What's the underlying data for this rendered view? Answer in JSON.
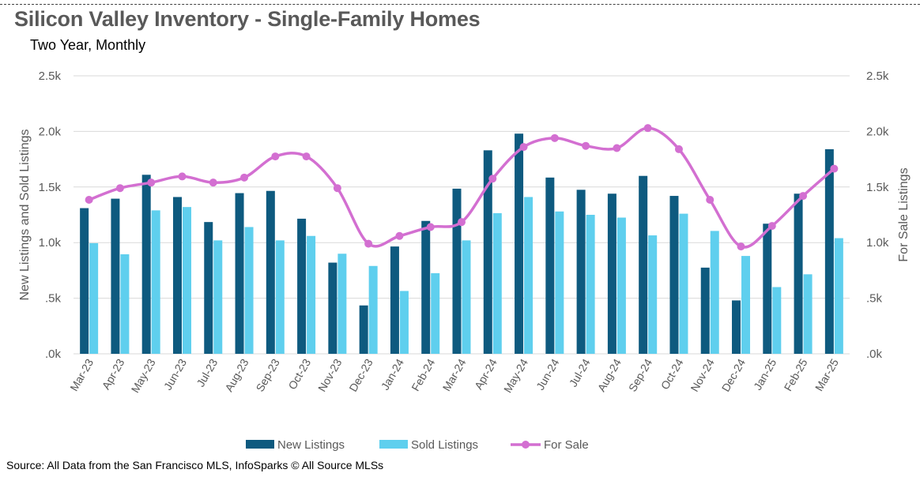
{
  "header": {
    "title": "Silicon Valley Inventory - Single-Family Homes",
    "subtitle": "Two Year, Monthly"
  },
  "footer": {
    "source": "Source: All Data from the San Francisco MLS, InfoSparks © All Source MLSs"
  },
  "colors": {
    "new_listings": "#0e5a7f",
    "sold_listings": "#5fcfee",
    "for_sale": "#d36fd1",
    "grid": "#d9d9d9",
    "text": "#595959"
  },
  "chart_data": {
    "type": "bar",
    "title": "Silicon Valley Inventory - Single-Family Homes",
    "subtitle": "Two Year, Monthly",
    "categories": [
      "Mar-23",
      "Apr-23",
      "May-23",
      "Jun-23",
      "Jul-23",
      "Aug-23",
      "Sep-23",
      "Oct-23",
      "Nov-23",
      "Dec-23",
      "Jan-24",
      "Feb-24",
      "Mar-24",
      "Apr-24",
      "May-24",
      "Jun-24",
      "Jul-24",
      "Aug-24",
      "Sep-24",
      "Oct-24",
      "Nov-24",
      "Dec-24",
      "Jan-25",
      "Feb-25",
      "Mar-25"
    ],
    "ylabel": "New Listings and Sold Listings",
    "y2label": "For Sale Listings",
    "ylim": [
      0,
      2500
    ],
    "y2lim": [
      0,
      2500
    ],
    "yticks": [
      ".0k",
      ".5k",
      "1.0k",
      "1.5k",
      "2.0k",
      "2.5k"
    ],
    "ytick_values": [
      0,
      500,
      1000,
      1500,
      2000,
      2500
    ],
    "grid": true,
    "legend_position": "bottom",
    "series": [
      {
        "name": "New Listings",
        "type": "bar",
        "axis": "left",
        "values": [
          1310,
          1395,
          1610,
          1410,
          1185,
          1445,
          1465,
          1215,
          820,
          435,
          965,
          1195,
          1485,
          1830,
          1980,
          1585,
          1475,
          1440,
          1600,
          1420,
          775,
          480,
          1170,
          1440,
          1840
        ]
      },
      {
        "name": "Sold Listings",
        "type": "bar",
        "axis": "left",
        "values": [
          995,
          895,
          1290,
          1320,
          1020,
          1140,
          1020,
          1060,
          900,
          790,
          565,
          725,
          1020,
          1265,
          1410,
          1280,
          1250,
          1225,
          1065,
          1260,
          1105,
          880,
          600,
          715,
          1040
        ]
      },
      {
        "name": "For Sale",
        "type": "line",
        "smooth": true,
        "marker": "circle",
        "axis": "right",
        "values": [
          1385,
          1490,
          1540,
          1595,
          1540,
          1585,
          1775,
          1775,
          1490,
          990,
          1060,
          1140,
          1185,
          1575,
          1860,
          1940,
          1870,
          1850,
          2030,
          1840,
          1385,
          965,
          1150,
          1420,
          1665
        ]
      }
    ]
  }
}
